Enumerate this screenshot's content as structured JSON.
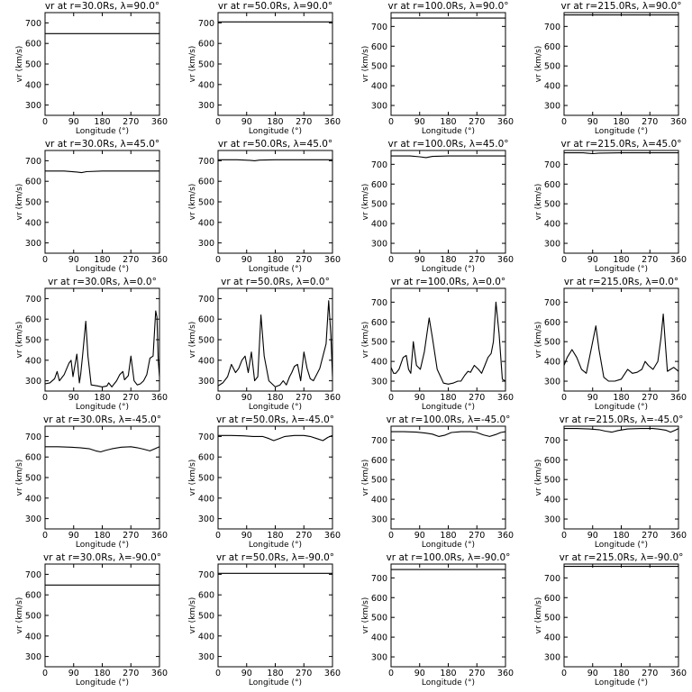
{
  "figure": {
    "xlabel": "Longitude (°)",
    "ylabel": "vr (km/s)",
    "xticks": [
      0,
      90,
      180,
      270,
      360
    ]
  },
  "chart_data": [
    {
      "type": "line",
      "title": "vr at r=30.0Rs, λ=90.0°",
      "xlabel": "Longitude (°)",
      "ylabel": "vr (km/s)",
      "xlim": [
        0,
        360
      ],
      "ylim": [
        250,
        750
      ],
      "yticks": [
        300,
        400,
        500,
        600,
        700
      ],
      "x": [
        0,
        360
      ],
      "series": [
        {
          "values": [
            648,
            648
          ]
        }
      ]
    },
    {
      "type": "line",
      "title": "vr at r=50.0Rs, λ=90.0°",
      "xlabel": "Longitude (°)",
      "ylabel": "vr (km/s)",
      "xlim": [
        0,
        360
      ],
      "ylim": [
        250,
        750
      ],
      "yticks": [
        300,
        400,
        500,
        600,
        700
      ],
      "x": [
        0,
        360
      ],
      "series": [
        {
          "values": [
            705,
            705
          ]
        }
      ]
    },
    {
      "type": "line",
      "title": "vr at r=100.0Rs, λ=90.0°",
      "xlabel": "Longitude (°)",
      "ylabel": "vr (km/s)",
      "xlim": [
        0,
        360
      ],
      "ylim": [
        250,
        770
      ],
      "yticks": [
        300,
        400,
        500,
        600,
        700
      ],
      "x": [
        0,
        360
      ],
      "series": [
        {
          "values": [
            742,
            742
          ]
        }
      ]
    },
    {
      "type": "line",
      "title": "vr at r=215.0Rs, λ=90.0°",
      "xlabel": "Longitude (°)",
      "ylabel": "vr (km/s)",
      "xlim": [
        0,
        360
      ],
      "ylim": [
        250,
        770
      ],
      "yticks": [
        300,
        400,
        500,
        600,
        700
      ],
      "x": [
        0,
        360
      ],
      "series": [
        {
          "values": [
            758,
            758
          ]
        }
      ]
    },
    {
      "type": "line",
      "title": "vr at r=30.0Rs, λ=45.0°",
      "xlabel": "Longitude (°)",
      "ylabel": "vr (km/s)",
      "xlim": [
        0,
        360
      ],
      "ylim": [
        250,
        750
      ],
      "yticks": [
        300,
        400,
        500,
        600,
        700
      ],
      "x": [
        0,
        60,
        100,
        115,
        130,
        180,
        360
      ],
      "series": [
        {
          "values": [
            650,
            650,
            645,
            642,
            647,
            650,
            650
          ]
        }
      ]
    },
    {
      "type": "line",
      "title": "vr at r=50.0Rs, λ=45.0°",
      "xlabel": "Longitude (°)",
      "ylabel": "vr (km/s)",
      "xlim": [
        0,
        360
      ],
      "ylim": [
        250,
        750
      ],
      "yticks": [
        300,
        400,
        500,
        600,
        700
      ],
      "x": [
        0,
        60,
        100,
        115,
        130,
        180,
        360
      ],
      "series": [
        {
          "values": [
            705,
            705,
            702,
            700,
            703,
            705,
            705
          ]
        }
      ]
    },
    {
      "type": "line",
      "title": "vr at r=100.0Rs, λ=45.0°",
      "xlabel": "Longitude (°)",
      "ylabel": "vr (km/s)",
      "xlim": [
        0,
        360
      ],
      "ylim": [
        250,
        770
      ],
      "yticks": [
        300,
        400,
        500,
        600,
        700
      ],
      "x": [
        0,
        60,
        90,
        110,
        130,
        180,
        360
      ],
      "series": [
        {
          "values": [
            742,
            742,
            738,
            734,
            740,
            742,
            742
          ]
        }
      ]
    },
    {
      "type": "line",
      "title": "vr at r=215.0Rs, λ=45.0°",
      "xlabel": "Longitude (°)",
      "ylabel": "vr (km/s)",
      "xlim": [
        0,
        360
      ],
      "ylim": [
        250,
        770
      ],
      "yticks": [
        300,
        400,
        500,
        600,
        700
      ],
      "x": [
        0,
        60,
        75,
        90,
        110,
        180,
        360
      ],
      "series": [
        {
          "values": [
            758,
            758,
            756,
            754,
            757,
            758,
            758
          ]
        }
      ]
    },
    {
      "type": "line",
      "title": "vr at r=30.0Rs, λ=0.0°",
      "xlabel": "Longitude (°)",
      "ylabel": "vr (km/s)",
      "xlim": [
        0,
        360
      ],
      "ylim": [
        250,
        750
      ],
      "yticks": [
        300,
        400,
        500,
        600,
        700
      ],
      "x": [
        0,
        15,
        30,
        38,
        45,
        60,
        75,
        82,
        88,
        100,
        108,
        112,
        118,
        128,
        135,
        145,
        165,
        180,
        195,
        200,
        210,
        225,
        235,
        245,
        250,
        262,
        270,
        280,
        290,
        300,
        310,
        320,
        330,
        340,
        348,
        352,
        356,
        360
      ],
      "series": [
        {
          "values": [
            285,
            290,
            310,
            345,
            300,
            330,
            385,
            400,
            320,
            430,
            290,
            330,
            420,
            590,
            420,
            280,
            275,
            270,
            275,
            290,
            270,
            300,
            330,
            345,
            305,
            325,
            420,
            300,
            280,
            285,
            300,
            330,
            410,
            420,
            640,
            610,
            400,
            320
          ]
        }
      ]
    },
    {
      "type": "line",
      "title": "vr at r=50.0Rs, λ=0.0°",
      "xlabel": "Longitude (°)",
      "ylabel": "vr (km/s)",
      "xlim": [
        0,
        360
      ],
      "ylim": [
        250,
        750
      ],
      "yticks": [
        300,
        400,
        500,
        600,
        700
      ],
      "x": [
        0,
        15,
        30,
        42,
        55,
        65,
        75,
        85,
        95,
        105,
        115,
        125,
        135,
        145,
        160,
        180,
        195,
        205,
        215,
        225,
        232,
        240,
        250,
        260,
        270,
        280,
        290,
        300,
        310,
        320,
        330,
        340,
        348,
        355,
        360
      ],
      "series": [
        {
          "values": [
            275,
            290,
            320,
            380,
            340,
            360,
            400,
            420,
            340,
            440,
            300,
            320,
            620,
            420,
            300,
            270,
            280,
            300,
            280,
            320,
            340,
            370,
            380,
            300,
            440,
            360,
            310,
            300,
            330,
            360,
            420,
            480,
            690,
            520,
            320
          ]
        }
      ]
    },
    {
      "type": "line",
      "title": "vr at r=100.0Rs, λ=0.0°",
      "xlabel": "Longitude (°)",
      "ylabel": "vr (km/s)",
      "xlim": [
        0,
        360
      ],
      "ylim": [
        250,
        770
      ],
      "yticks": [
        300,
        400,
        500,
        600,
        700
      ],
      "x": [
        0,
        8,
        15,
        25,
        38,
        48,
        55,
        62,
        70,
        80,
        92,
        105,
        120,
        130,
        145,
        165,
        180,
        195,
        210,
        220,
        232,
        242,
        250,
        262,
        275,
        285,
        295,
        305,
        315,
        322,
        330,
        340,
        350,
        360
      ],
      "series": [
        {
          "values": [
            370,
            340,
            340,
            360,
            420,
            430,
            360,
            340,
            500,
            380,
            360,
            450,
            620,
            520,
            360,
            290,
            285,
            290,
            300,
            300,
            330,
            350,
            345,
            380,
            360,
            340,
            380,
            420,
            440,
            500,
            700,
            540,
            310,
            300
          ]
        }
      ]
    },
    {
      "type": "line",
      "title": "vr at r=215.0Rs, λ=0.0°",
      "xlabel": "Longitude (°)",
      "ylabel": "vr (km/s)",
      "xlim": [
        0,
        360
      ],
      "ylim": [
        250,
        770
      ],
      "yticks": [
        300,
        400,
        500,
        600,
        700
      ],
      "x": [
        0,
        10,
        25,
        40,
        55,
        70,
        85,
        100,
        110,
        125,
        140,
        160,
        180,
        200,
        215,
        230,
        245,
        255,
        265,
        280,
        295,
        305,
        312,
        320,
        325,
        335,
        345,
        360
      ],
      "series": [
        {
          "values": [
            380,
            420,
            460,
            420,
            360,
            340,
            460,
            580,
            460,
            320,
            300,
            300,
            310,
            360,
            340,
            345,
            360,
            400,
            380,
            360,
            400,
            520,
            640,
            460,
            350,
            360,
            370,
            350
          ]
        }
      ]
    },
    {
      "type": "line",
      "title": "vr at r=30.0Rs, λ=-45.0°",
      "xlabel": "Longitude (°)",
      "ylabel": "vr (km/s)",
      "xlim": [
        0,
        360
      ],
      "ylim": [
        250,
        750
      ],
      "yticks": [
        300,
        400,
        500,
        600,
        700
      ],
      "x": [
        0,
        40,
        80,
        110,
        140,
        160,
        175,
        190,
        210,
        240,
        270,
        290,
        310,
        330,
        345,
        360
      ],
      "series": [
        {
          "values": [
            650,
            650,
            648,
            645,
            640,
            630,
            625,
            632,
            640,
            648,
            650,
            645,
            638,
            630,
            640,
            650
          ]
        }
      ]
    },
    {
      "type": "line",
      "title": "vr at r=50.0Rs, λ=-45.0°",
      "xlabel": "Longitude (°)",
      "ylabel": "vr (km/s)",
      "xlim": [
        0,
        360
      ],
      "ylim": [
        250,
        750
      ],
      "yticks": [
        300,
        400,
        500,
        600,
        700
      ],
      "x": [
        0,
        40,
        80,
        110,
        140,
        160,
        175,
        190,
        210,
        240,
        270,
        290,
        310,
        330,
        345,
        360
      ],
      "series": [
        {
          "values": [
            705,
            705,
            703,
            700,
            700,
            690,
            680,
            688,
            700,
            705,
            705,
            700,
            690,
            680,
            695,
            705
          ]
        }
      ]
    },
    {
      "type": "line",
      "title": "vr at r=100.0Rs, λ=-45.0°",
      "xlabel": "Longitude (°)",
      "ylabel": "vr (km/s)",
      "xlim": [
        0,
        360
      ],
      "ylim": [
        250,
        770
      ],
      "yticks": [
        300,
        400,
        500,
        600,
        700
      ],
      "x": [
        0,
        40,
        80,
        110,
        130,
        150,
        170,
        190,
        220,
        250,
        270,
        290,
        310,
        330,
        345,
        360
      ],
      "series": [
        {
          "values": [
            742,
            742,
            740,
            735,
            730,
            718,
            725,
            738,
            742,
            742,
            738,
            726,
            718,
            728,
            738,
            742
          ]
        }
      ]
    },
    {
      "type": "line",
      "title": "vr at r=215.0Rs, λ=-45.0°",
      "xlabel": "Longitude (°)",
      "ylabel": "vr (km/s)",
      "xlim": [
        0,
        360
      ],
      "ylim": [
        250,
        770
      ],
      "yticks": [
        300,
        400,
        500,
        600,
        700
      ],
      "x": [
        0,
        40,
        80,
        110,
        130,
        150,
        170,
        200,
        240,
        280,
        300,
        320,
        335,
        350,
        360
      ],
      "series": [
        {
          "values": [
            758,
            758,
            756,
            752,
            745,
            740,
            748,
            756,
            758,
            758,
            755,
            750,
            740,
            750,
            758
          ]
        }
      ]
    },
    {
      "type": "line",
      "title": "vr at r=30.0Rs, λ=-90.0°",
      "xlabel": "Longitude (°)",
      "ylabel": "vr (km/s)",
      "xlim": [
        0,
        360
      ],
      "ylim": [
        250,
        750
      ],
      "yticks": [
        300,
        400,
        500,
        600,
        700
      ],
      "x": [
        0,
        360
      ],
      "series": [
        {
          "values": [
            648,
            648
          ]
        }
      ]
    },
    {
      "type": "line",
      "title": "vr at r=50.0Rs, λ=-90.0°",
      "xlabel": "Longitude (°)",
      "ylabel": "vr (km/s)",
      "xlim": [
        0,
        360
      ],
      "ylim": [
        250,
        750
      ],
      "yticks": [
        300,
        400,
        500,
        600,
        700
      ],
      "x": [
        0,
        360
      ],
      "series": [
        {
          "values": [
            705,
            705
          ]
        }
      ]
    },
    {
      "type": "line",
      "title": "vr at r=100.0Rs, λ=-90.0°",
      "xlabel": "Longitude (°)",
      "ylabel": "vr (km/s)",
      "xlim": [
        0,
        360
      ],
      "ylim": [
        250,
        770
      ],
      "yticks": [
        300,
        400,
        500,
        600,
        700
      ],
      "x": [
        0,
        360
      ],
      "series": [
        {
          "values": [
            742,
            742
          ]
        }
      ]
    },
    {
      "type": "line",
      "title": "vr at r=215.0Rs, λ=-90.0°",
      "xlabel": "Longitude (°)",
      "ylabel": "vr (km/s)",
      "xlim": [
        0,
        360
      ],
      "ylim": [
        250,
        770
      ],
      "yticks": [
        300,
        400,
        500,
        600,
        700
      ],
      "x": [
        0,
        360
      ],
      "series": [
        {
          "values": [
            758,
            758
          ]
        }
      ]
    }
  ]
}
